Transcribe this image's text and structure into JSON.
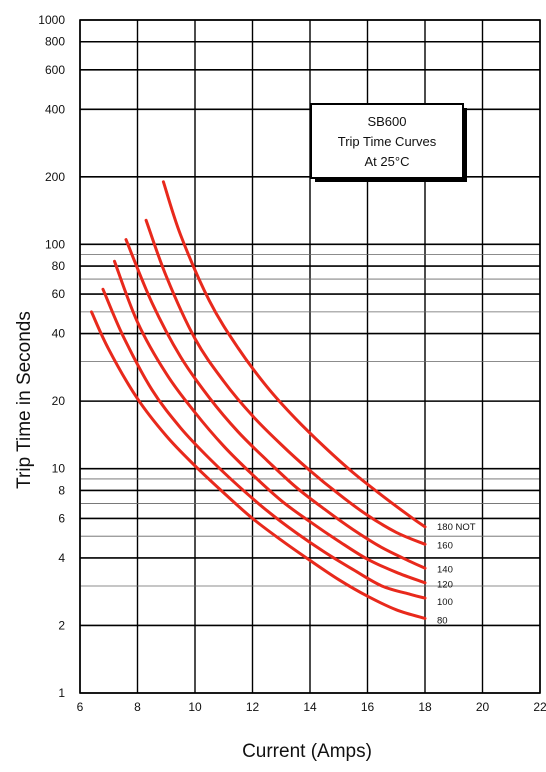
{
  "chart_data": {
    "type": "line",
    "title_box": {
      "line1": "SB600",
      "line2": "Trip Time Curves",
      "line3": "At 25°C"
    },
    "xlabel": "Current (Amps)",
    "ylabel": "Trip Time in Seconds",
    "x_scale": "linear",
    "y_scale": "log",
    "xlim": [
      6,
      22
    ],
    "ylim": [
      1,
      1000
    ],
    "grid": true,
    "x_ticks": [
      "6",
      "8",
      "10",
      "12",
      "14",
      "16",
      "18",
      "20",
      "22"
    ],
    "y_ticks": [
      {
        "value": 1,
        "label": "1"
      },
      {
        "value": 2,
        "label": "2"
      },
      {
        "value": 4,
        "label": "4"
      },
      {
        "value": 6,
        "label": "6"
      },
      {
        "value": 8,
        "label": "8"
      },
      {
        "value": 10,
        "label": "10"
      },
      {
        "value": 20,
        "label": "20"
      },
      {
        "value": 40,
        "label": "40"
      },
      {
        "value": 60,
        "label": "60"
      },
      {
        "value": 80,
        "label": "80"
      },
      {
        "value": 100,
        "label": "100"
      },
      {
        "value": 200,
        "label": "200"
      },
      {
        "value": 400,
        "label": "400"
      },
      {
        "value": 600,
        "label": "600"
      },
      {
        "value": 800,
        "label": "800"
      },
      {
        "value": 1000,
        "label": "1000"
      }
    ],
    "y_minor_grid": [
      3,
      5,
      7,
      9,
      30,
      50,
      70,
      90
    ],
    "series_color": "#e8291c",
    "series": [
      {
        "name": "80",
        "label_value": 2.1,
        "x": [
          6.4,
          7,
          8,
          9,
          10,
          11,
          12,
          13,
          14,
          15,
          16,
          17,
          18
        ],
        "y": [
          50,
          34,
          20.5,
          14,
          10.3,
          7.8,
          6,
          4.8,
          3.9,
          3.2,
          2.7,
          2.35,
          2.15
        ]
      },
      {
        "name": "100",
        "label_value": 2.55,
        "x": [
          6.8,
          7.5,
          8.5,
          9.5,
          10.5,
          11.5,
          12.5,
          13.5,
          14.5,
          15.5,
          16.5,
          17.5,
          18
        ],
        "y": [
          63,
          39,
          22.5,
          15.2,
          11.1,
          8.4,
          6.5,
          5.2,
          4.25,
          3.55,
          3.0,
          2.75,
          2.65
        ]
      },
      {
        "name": "120",
        "label_value": 3.05,
        "x": [
          7.2,
          8,
          9,
          10,
          11,
          12,
          13,
          14,
          15,
          16,
          17,
          18
        ],
        "y": [
          84,
          45,
          26.5,
          17.8,
          12.6,
          9.4,
          7.2,
          5.8,
          4.75,
          3.95,
          3.45,
          3.1
        ]
      },
      {
        "name": "140",
        "label_value": 3.55,
        "x": [
          7.6,
          8.5,
          9.5,
          10.5,
          11.5,
          12.5,
          13.5,
          14.5,
          15.5,
          16.5,
          17.5,
          18
        ],
        "y": [
          105,
          55,
          31.5,
          20.7,
          14.6,
          10.9,
          8.3,
          6.6,
          5.35,
          4.45,
          3.85,
          3.6
        ]
      },
      {
        "name": "160",
        "label_value": 4.55,
        "x": [
          8.3,
          9,
          10,
          11,
          12,
          13,
          14,
          15,
          16,
          17,
          18
        ],
        "y": [
          128,
          72,
          38,
          24.5,
          17.2,
          12.8,
          9.8,
          7.7,
          6.2,
          5.2,
          4.6
        ]
      },
      {
        "name": "180 NOT",
        "label_value": 5.5,
        "x": [
          8.9,
          9.5,
          10.5,
          11.5,
          12.5,
          13.5,
          14.5,
          15.5,
          16.5,
          17.5,
          18
        ],
        "y": [
          190,
          110,
          56,
          34.5,
          23.2,
          16.7,
          12.5,
          9.6,
          7.6,
          6.1,
          5.5
        ]
      }
    ]
  }
}
